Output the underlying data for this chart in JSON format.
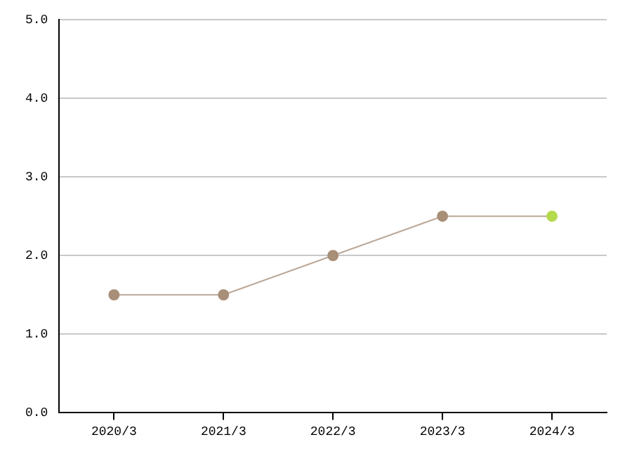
{
  "chart_data": {
    "type": "line",
    "categories": [
      "2020/3",
      "2021/3",
      "2022/3",
      "2023/3",
      "2024/3"
    ],
    "values": [
      1.5,
      1.5,
      2.0,
      2.5,
      2.5
    ],
    "color": "#bba898",
    "colors": [
      "#a88f78",
      "#a88f78",
      "#a88f78",
      "#a88f78",
      "#b5da4e"
    ],
    "ylim": [
      0,
      5
    ],
    "yticks": [
      {
        "value": 0,
        "label": "0.0"
      },
      {
        "value": 1,
        "label": "1.0"
      },
      {
        "value": 2,
        "label": "2.0"
      },
      {
        "value": 3,
        "label": "3.0"
      },
      {
        "value": 4,
        "label": "4.0"
      },
      {
        "value": 5,
        "label": "5.0"
      }
    ],
    "grid": "y",
    "legend": false,
    "marker": "circle",
    "line_style": "solid"
  }
}
